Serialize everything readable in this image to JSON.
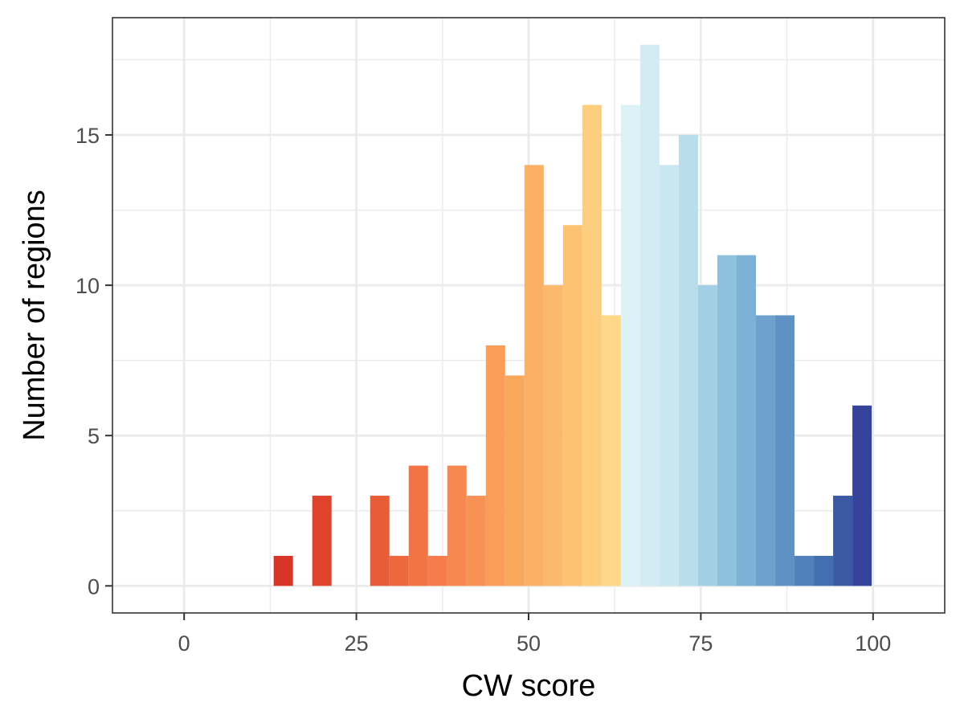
{
  "chart_data": {
    "type": "bar",
    "subtype": "histogram",
    "title": "",
    "xlabel": "CW score",
    "ylabel": "Number of regions",
    "xlim": [
      -10.4,
      110.4
    ],
    "ylim": [
      -0.9,
      18.9
    ],
    "x_ticks": [
      0,
      25,
      50,
      75,
      100
    ],
    "x_tick_labels": [
      "0",
      "25",
      "50",
      "75",
      "100"
    ],
    "y_ticks": [
      0,
      5,
      10,
      15
    ],
    "y_tick_labels": [
      "0",
      "5",
      "10",
      "15"
    ],
    "grid": true,
    "legend": "none",
    "bin_width": 2.8,
    "bin_starts": [
      13.0,
      18.6,
      27.0,
      29.8,
      32.6,
      35.4,
      38.2,
      41.0,
      43.8,
      46.6,
      49.4,
      52.2,
      55.0,
      57.8,
      60.6,
      63.4,
      66.2,
      69.0,
      71.8,
      74.6,
      77.4,
      80.2,
      83.0,
      85.8,
      88.6,
      91.4,
      94.2,
      97.0
    ],
    "values": [
      1,
      3,
      3,
      1,
      4,
      1,
      4,
      3,
      8,
      7,
      14,
      10,
      12,
      16,
      9,
      16,
      18,
      14,
      15,
      10,
      11,
      11,
      9,
      9,
      1,
      1,
      3,
      6
    ],
    "fill_gradient": {
      "stops": [
        {
          "value": 13,
          "color": "#d73027"
        },
        {
          "value": 25,
          "color": "#e4502e"
        },
        {
          "value": 37,
          "color": "#f67e4b"
        },
        {
          "value": 46,
          "color": "#f9a05a"
        },
        {
          "value": 55,
          "color": "#fdbe6e"
        },
        {
          "value": 64,
          "color": "#fee090"
        },
        {
          "value": 64.01,
          "color": "#e0f3f8"
        },
        {
          "value": 72,
          "color": "#c2e4ef"
        },
        {
          "value": 78,
          "color": "#92c5de"
        },
        {
          "value": 85,
          "color": "#6a9fcc"
        },
        {
          "value": 92,
          "color": "#4575b4"
        },
        {
          "value": 100,
          "color": "#313695"
        }
      ]
    },
    "panel_background": "#ffffff",
    "grid_color": "#ebebeb",
    "border_color": "#333333"
  }
}
